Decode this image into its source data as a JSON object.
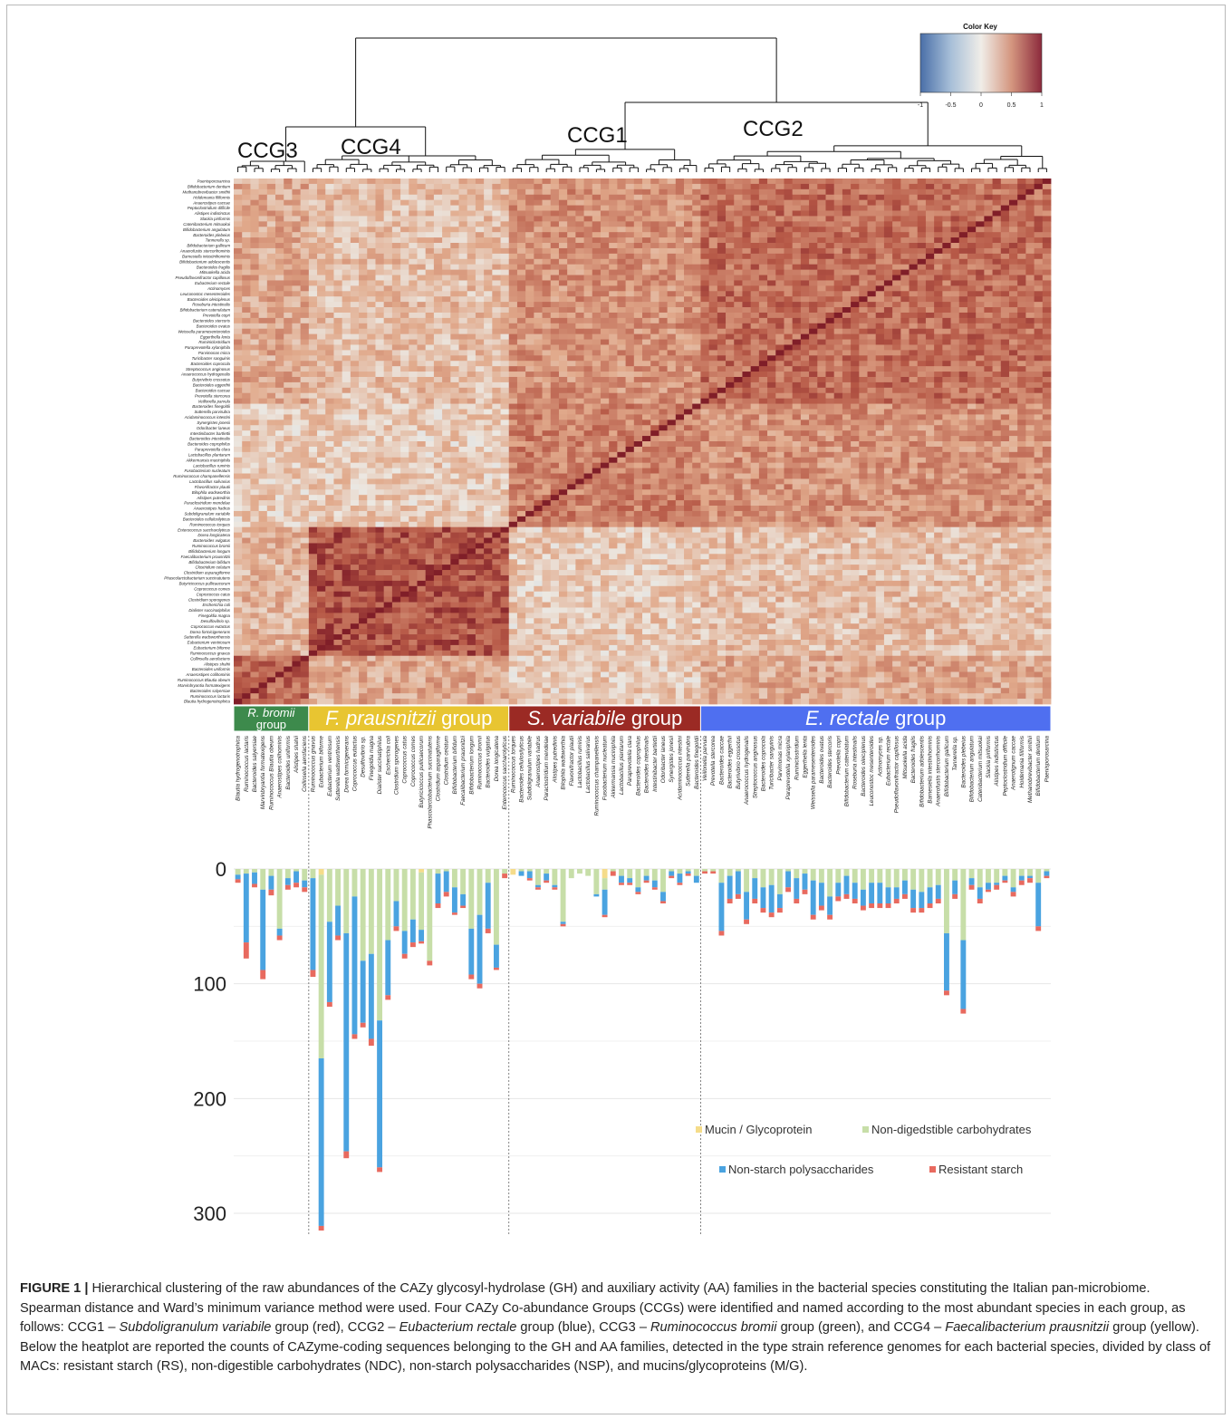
{
  "figure": {
    "cluster_labels": [
      "CCG3",
      "CCG4",
      "CCG1",
      "CCG2"
    ],
    "color_key": {
      "title": "Color Key",
      "ticks": [
        "-1",
        "-0.5",
        "0",
        "0.5",
        "1"
      ],
      "low_color": "#4a6fa8",
      "mid_color": "#f0ede8",
      "high_color": "#8c2a3c"
    },
    "group_colors": {
      "CCG3": "#3d8a4c",
      "CCG4": "#e8c531",
      "CCG1": "#9b2a24",
      "CCG2": "#4f6ff0"
    },
    "group_bar_labels": [
      {
        "group": "CCG3",
        "lines": [
          "R. bromii",
          "group"
        ],
        "italic": "R. bromii"
      },
      {
        "group": "CCG4",
        "italic": "F. prausnitzii",
        "rest": " group"
      },
      {
        "group": "CCG1",
        "italic": "S. variabile",
        "rest": " group"
      },
      {
        "group": "CCG2",
        "italic": "E. rectale",
        "rest": " group"
      }
    ],
    "species_columns": [
      "Blautia hydrogenotrophica",
      "Ruminococcus lactaris",
      "Bacteroides salyersiae",
      "Marvinbryantia formatexigens",
      "Ruminococcus Blautia obeum",
      "Anaerostipes colihominis",
      "Bacteroides uniformis",
      "Alistipes shahii",
      "Collinsella aerofaciens",
      "Ruminococcus gnavus",
      "Eubacterium biforme",
      "Eubacterium ventriosum",
      "Sutterella wadsworthensis",
      "Dorea formicigenerans",
      "Coprococcus eutactus",
      "Desulfovibrio sp.",
      "Finegoldia magna",
      "Dialister succinatiphilus",
      "Escherichia coli",
      "Clostridium sporogenes",
      "Coprococcus catus",
      "Coprococcus comes",
      "Butyricicoccus pullicaecorum",
      "Phascolarctobacterium succinatutens",
      "Clostridium asparagiforme",
      "Clostridium celatum",
      "Bifidobacterium bifidum",
      "Faecalibacterium prausnitzii",
      "Bifidobacterium longum",
      "Ruminococcus bromii",
      "Bacteroides vulgatus",
      "Dorea longicatena",
      "Enterococcus saccharolyticus",
      "Ruminococcus torques",
      "Bacteroides cellulosilyticus",
      "Subdoligranulum variabile",
      "Anaerostipes hadrus",
      "Paraclostridium mendelae",
      "Alistipes putredinis",
      "Bilophila wadsworthia",
      "Flavonifractor plautii",
      "Lactobacillus ruminis",
      "Lactobacillus salivarius",
      "Ruminococcus champanellensis",
      "Fusobacterium nucleatum",
      "Akkermansia muciniphila",
      "Lactobacillus plantarum",
      "Paraprevotella clara",
      "Bacteroides coprophilus",
      "Bacteroides intestinalis",
      "Intestinibacter bartlettii",
      "Odoribacter laneus",
      "Synergistes jonesii",
      "Acidaminococcus intestini",
      "Sutterella parvirubra",
      "Bacteroides finegoldii",
      "Veillonella parvula",
      "Prevotella stercorea",
      "Bacteroides caccae",
      "Bacteroides eggerthii",
      "Butyrivibrio crossotus",
      "Anaerococcus hydrogenalis",
      "Streptococcus anginosus",
      "Bacteroides coprocola",
      "Turicibacter sanguinis",
      "Parvimonas micra",
      "Paraprevotella xylaniphila",
      "Ruminiclostridium",
      "Eggerthella lenta",
      "Weissella paramesenteroides",
      "Bacteroides ovatus",
      "Bacteroides stercoris",
      "Prevotella copri",
      "Bifidobacterium catenulatum",
      "Roseburia intestinalis",
      "Bacteroides oleiciplenus",
      "Leuconostoc mesenteroides",
      "Actinomyces sp.",
      "Eubacterium rectale",
      "Pseudoflavonifractor capillosus",
      "Mitsuokella acida",
      "Bacteroides fragilis",
      "Bifidobacterium adolescentis",
      "Barnesiella intestinihominis",
      "Anaerofustis stercorihominis",
      "Bifidobacterium gallicum",
      "Tannerella sp.",
      "Bacteroides plebeius",
      "Bifidobacterium angulatum",
      "Catenibacterium mitsuokai",
      "Slackia piriformis",
      "Alistipes indistinctus",
      "Peptoclostridium difficile",
      "Anaerotignum caccae",
      "Holdemania filiformis",
      "Methanobrevibacter smithii",
      "Bifidobacterium dentium",
      "Paenisporosarcina"
    ],
    "species_rows": [
      "Paenisporosarcina",
      "Bifidobacterium dentium",
      "Methanobrevibacter smithii",
      "Holdemania filiformis",
      "Anaerostipes caccae",
      "Peptoclostridium difficile",
      "Alistipes indistinctus",
      "Slackia piriformis",
      "Catenibacterium mitsuokai",
      "Bifidobacterium angulatum",
      "Bacteroides plebeius",
      "Tannerella sp.",
      "Bifidobacterium gallicum",
      "Anaerofustis stercorihominis",
      "Barnesiella intestinihominis",
      "Bifidobacterium adolescentis",
      "Bacteroides fragilis",
      "Mitsuokella acida",
      "Pseudoflavonifractor capillosus",
      "Eubacterium rectale",
      "Actinomyces",
      "Leuconostoc mesenteroides",
      "Bacteroides oleiciplenus",
      "Roseburia intestinalis",
      "Bifidobacterium catenulatum",
      "Prevotella copri",
      "Bacteroides stercoris",
      "Bacteroides ovatus",
      "Weissella paramesenteroides",
      "Eggerthella lenta",
      "Ruminiclostridium",
      "Paraprevotella xylaniphila",
      "Parvimonas micra",
      "Turicibacter sanguinis",
      "Bacteroides coprocola",
      "Streptococcus anginosus",
      "Anaerococcus hydrogenalis",
      "Butyrivibrio crossotus",
      "Bacteroides eggerthii",
      "Bacteroides caccae",
      "Prevotella stercorea",
      "Veillonella parvula",
      "Bacteroides finegoldii",
      "Sutterella parvirubra",
      "Acidaminococcus intestini",
      "Synergistes jonesii",
      "Odoribacter laneus",
      "Intestinibacter bartlettii",
      "Bacteroides intestinalis",
      "Bacteroides coprophilus",
      "Paraprevotella clara",
      "Lactobacillus plantarum",
      "Akkermansia muciniphila",
      "Lactobacillus ruminis",
      "Fusobacterium nucleatum",
      "Ruminococcus champanellensis",
      "Lactobacillus salivarius",
      "Flavonifractor plautii",
      "Bilophila wadsworthia",
      "Alistipes putredinis",
      "Paraclostridium mendelae",
      "Anaerostipes hadrus",
      "Subdoligranulum variabile",
      "Bacteroides cellulosilyticus",
      "Ruminococcus torques",
      "Enterococcus saccharolyticus",
      "Dorea longicatena",
      "Bacteroides vulgatus",
      "Ruminococcus bromii",
      "Bifidobacterium longum",
      "Faecalibacterium prausnitzii",
      "Bifidobacterium bifidum",
      "Clostridium celatum",
      "Clostridium asparagiforme",
      "Phascolarctobacterium succinatutens",
      "Butyricicoccus pullicaecorum",
      "Coprococcus comes",
      "Coprococcus catus",
      "Clostridium sporogenes",
      "Escherichia coli",
      "Dialister succinatiphilus",
      "Finegoldia magna",
      "Desulfovibrio sp.",
      "Coprococcus eutactus",
      "Dorea formicigenerans",
      "Sutterella wadsworthensis",
      "Eubacterium ventriosum",
      "Eubacterium biforme",
      "Ruminococcus gnavus",
      "Collinsella aerofaciens",
      "Alistipes shahii",
      "Bacteroides uniformis",
      "Anaerostipes colihominis",
      "Ruminococcus Blautia obeum",
      "Marvinbryantia formatexigens",
      "Bacteroides salyersiae",
      "Ruminococcus lactaris",
      "Blautia hydrogenotrophica"
    ],
    "bar_axis_ticks": [
      "0",
      "100",
      "200",
      "300"
    ],
    "legend": [
      {
        "label": "Mucin / Glycoprotein",
        "color": "#f5dc8a"
      },
      {
        "label": "Non-digedstible carbohydrates",
        "color": "#c7dea8"
      },
      {
        "label": "Non-starch polysaccharides",
        "color": "#4aa3e0"
      },
      {
        "label": "Resistant starch",
        "color": "#e86a5f"
      }
    ]
  },
  "chart_data": {
    "type": "bar",
    "stacked": true,
    "orientation": "downward",
    "ylim": [
      0,
      300
    ],
    "series": [
      {
        "name": "Mucin / Glycoprotein",
        "values": [
          0,
          0,
          0,
          0,
          0,
          0,
          0,
          0,
          0,
          0,
          5,
          0,
          0,
          0,
          0,
          0,
          0,
          0,
          0,
          0,
          0,
          0,
          3,
          0,
          0,
          0,
          0,
          0,
          0,
          0,
          0,
          0,
          0,
          5,
          0,
          0,
          0,
          0,
          0,
          0,
          0,
          0,
          0,
          0,
          8,
          0,
          0,
          0,
          0,
          0,
          0,
          0,
          0,
          0,
          0,
          0,
          0,
          0,
          0,
          0,
          0,
          0,
          0,
          0,
          0,
          0,
          0,
          0,
          0,
          0,
          0,
          0,
          0,
          0,
          0,
          0,
          0,
          0,
          0,
          0,
          0,
          0,
          0,
          0,
          0,
          0,
          0,
          0,
          0,
          0,
          0,
          0,
          0,
          0,
          0,
          0,
          0,
          0
        ]
      },
      {
        "name": "Non-digedstible carbohydrates",
        "values": [
          5,
          4,
          3,
          18,
          6,
          52,
          8,
          2,
          10,
          8,
          160,
          46,
          32,
          56,
          24,
          80,
          74,
          132,
          62,
          28,
          54,
          44,
          50,
          80,
          4,
          2,
          16,
          22,
          52,
          40,
          12,
          66,
          4,
          0,
          2,
          2,
          14,
          4,
          14,
          46,
          8,
          4,
          6,
          22,
          10,
          2,
          6,
          8,
          16,
          6,
          10,
          20,
          2,
          4,
          2,
          6,
          2,
          2,
          12,
          6,
          2,
          20,
          8,
          16,
          14,
          22,
          2,
          8,
          4,
          10,
          12,
          24,
          12,
          6,
          12,
          18,
          12,
          12,
          16,
          16,
          10,
          18,
          20,
          16,
          14,
          56,
          10,
          62,
          8,
          16,
          12,
          12,
          6,
          16,
          6,
          6,
          12,
          2
        ]
      },
      {
        "name": "Non-starch polysaccharides",
        "values": [
          4,
          60,
          10,
          70,
          12,
          6,
          6,
          10,
          6,
          80,
          146,
          70,
          26,
          190,
          120,
          54,
          74,
          128,
          48,
          22,
          20,
          20,
          10,
          0,
          26,
          18,
          22,
          10,
          40,
          60,
          40,
          20,
          0,
          0,
          4,
          6,
          2,
          6,
          2,
          2,
          0,
          0,
          0,
          2,
          22,
          0,
          6,
          4,
          4,
          4,
          6,
          8,
          4,
          8,
          2,
          6,
          0,
          0,
          42,
          20,
          20,
          24,
          18,
          18,
          24,
          12,
          14,
          18,
          14,
          30,
          20,
          16,
          12,
          16,
          14,
          14,
          18,
          18,
          14,
          10,
          12,
          16,
          14,
          14,
          12,
          50,
          12,
          60,
          6,
          10,
          6,
          2,
          4,
          4,
          4,
          2,
          38,
          4
        ]
      },
      {
        "name": "Resistant starch",
        "values": [
          3,
          14,
          3,
          8,
          5,
          4,
          4,
          4,
          4,
          6,
          4,
          4,
          4,
          6,
          4,
          4,
          6,
          4,
          4,
          4,
          4,
          4,
          2,
          4,
          4,
          4,
          2,
          2,
          4,
          4,
          4,
          2,
          4,
          0,
          0,
          2,
          2,
          2,
          2,
          2,
          0,
          0,
          0,
          0,
          2,
          4,
          2,
          2,
          2,
          2,
          2,
          2,
          2,
          2,
          2,
          0,
          2,
          2,
          4,
          4,
          4,
          4,
          4,
          4,
          4,
          4,
          4,
          4,
          4,
          4,
          4,
          4,
          4,
          4,
          4,
          4,
          4,
          4,
          4,
          4,
          4,
          4,
          4,
          4,
          4,
          4,
          4,
          4,
          4,
          4,
          2,
          4,
          2,
          4,
          4,
          4,
          4,
          2
        ]
      }
    ],
    "ylabel": "",
    "xlabel": ""
  },
  "caption": {
    "label": "FIGURE 1 |",
    "text_parts": [
      {
        "t": " Hierarchical clustering of the raw abundances of the CAZy glycosyl-hydrolase (GH) and auxiliary activity (AA) families in the bacterial species constituting the Italian pan-microbiome. Spearman distance and Ward’s minimum variance method were used. Four CAZy Co-abundance Groups (CCGs) were identified and named according to the most abundant species in each group, as follows: CCG1 – ",
        "i": false
      },
      {
        "t": "Subdoligranulum variabile",
        "i": true
      },
      {
        "t": " group (red), CCG2 – ",
        "i": false
      },
      {
        "t": "Eubacterium rectale",
        "i": true
      },
      {
        "t": " group (blue), CCG3 – ",
        "i": false
      },
      {
        "t": "Ruminococcus bromii",
        "i": true
      },
      {
        "t": " group (green), and CCG4 – ",
        "i": false
      },
      {
        "t": "Faecalibacterium prausnitzii",
        "i": true
      },
      {
        "t": " group (yellow). Below the heatplot are reported the counts of CAZyme-coding sequences belonging to the GH and AA families, detected in the type strain reference genomes for each bacterial species, divided by class of MACs: resistant starch (RS), non-digestible carbohydrates (NDC), non-starch polysaccharides (NSP), and mucins/glycoproteins (M/G).",
        "i": false
      }
    ]
  }
}
